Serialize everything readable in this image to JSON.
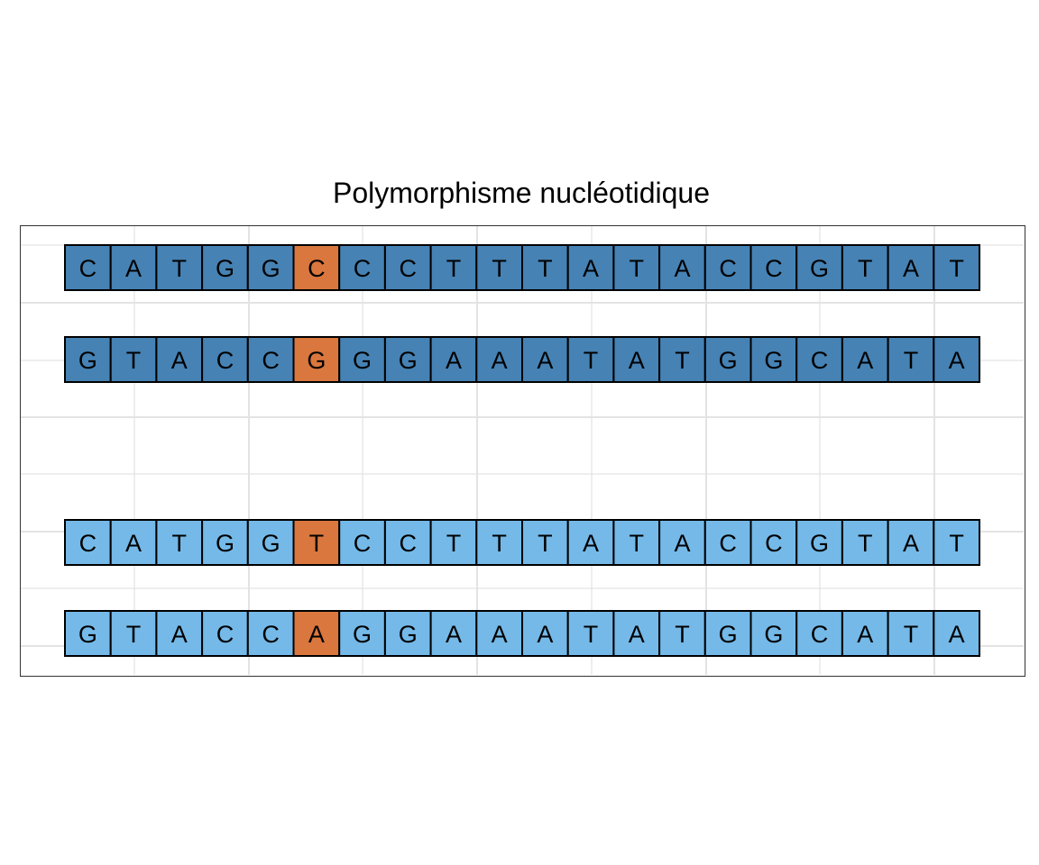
{
  "title": "Polymorphisme nucléotidique",
  "colors": {
    "allele_1": "#4682b4",
    "allele_2": "#74b9e8",
    "snp": "#d9773e",
    "border": "#000000",
    "grid": "#e3e3e3",
    "panel_border": "#333333"
  },
  "chart_data": {
    "type": "heatmap",
    "title": "Polymorphisme nucléotidique",
    "snp_position": 6,
    "strands": [
      {
        "group": "allele_1",
        "sequence": [
          "C",
          "A",
          "T",
          "G",
          "G",
          "C",
          "C",
          "C",
          "T",
          "T",
          "T",
          "A",
          "T",
          "A",
          "C",
          "C",
          "G",
          "T",
          "A",
          "T"
        ]
      },
      {
        "group": "allele_1",
        "sequence": [
          "G",
          "T",
          "A",
          "C",
          "C",
          "G",
          "G",
          "G",
          "A",
          "A",
          "A",
          "T",
          "A",
          "T",
          "G",
          "G",
          "C",
          "A",
          "T",
          "A"
        ]
      },
      {
        "group": "allele_2",
        "sequence": [
          "C",
          "A",
          "T",
          "G",
          "G",
          "T",
          "C",
          "C",
          "T",
          "T",
          "T",
          "A",
          "T",
          "A",
          "C",
          "C",
          "G",
          "T",
          "A",
          "T"
        ]
      },
      {
        "group": "allele_2",
        "sequence": [
          "G",
          "T",
          "A",
          "C",
          "C",
          "A",
          "G",
          "G",
          "A",
          "A",
          "A",
          "T",
          "A",
          "T",
          "G",
          "G",
          "C",
          "A",
          "T",
          "A"
        ]
      }
    ]
  }
}
